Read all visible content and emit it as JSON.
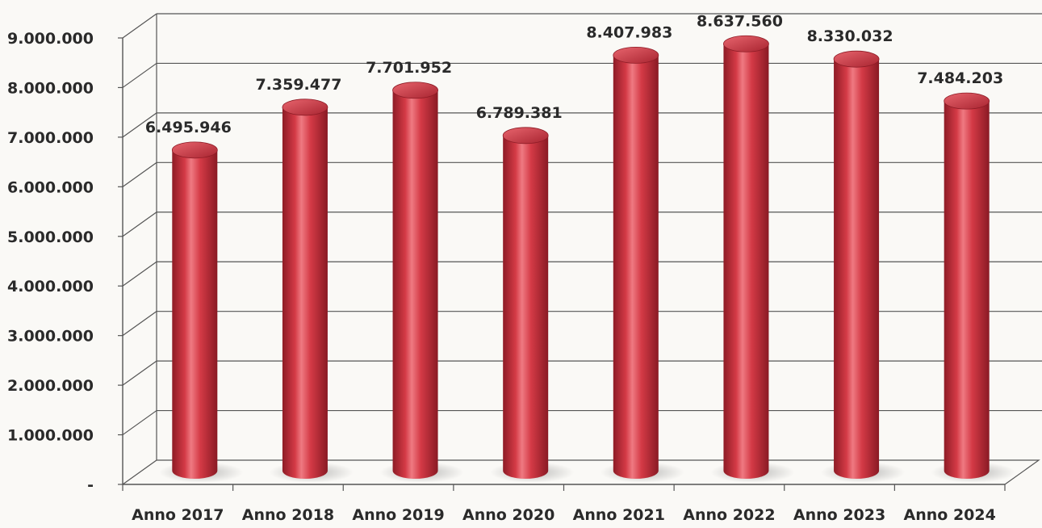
{
  "chart_data": {
    "type": "bar",
    "style": "3d-cylinder",
    "title": "",
    "xlabel": "",
    "ylabel": "",
    "categories": [
      "Anno 2017",
      "Anno 2018",
      "Anno 2019",
      "Anno 2020",
      "Anno 2021",
      "Anno 2022",
      "Anno 2023",
      "Anno 2024"
    ],
    "values": [
      6495946,
      7359477,
      7701952,
      6789381,
      8407983,
      8637560,
      8330032,
      7484203
    ],
    "data_labels": [
      "6.495.946",
      "7.359.477",
      "7.701.952",
      "6.789.381",
      "8.407.983",
      "8.637.560",
      "8.330.032",
      "7.484.203"
    ],
    "ylim": [
      0,
      9000000
    ],
    "yticks": [
      0,
      1000000,
      2000000,
      3000000,
      4000000,
      5000000,
      6000000,
      7000000,
      8000000,
      9000000
    ],
    "ytick_labels": [
      "-",
      "1.000.000",
      "2.000.000",
      "3.000.000",
      "4.000.000",
      "5.000.000",
      "6.000.000",
      "7.000.000",
      "8.000.000",
      "9.000.000"
    ],
    "grid": true,
    "legend": "none",
    "colors": {
      "bar": "#d43a46",
      "bar_dark": "#8e1c26",
      "bar_light": "#ef7a82",
      "grid": "#555555"
    }
  }
}
